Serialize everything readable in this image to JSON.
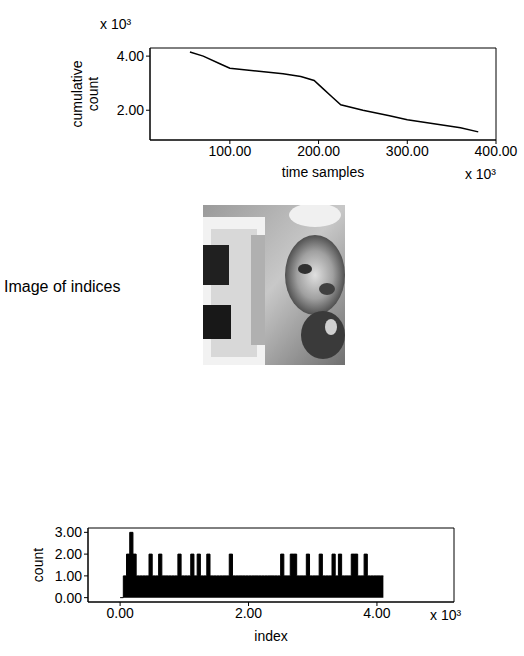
{
  "chart_data": [
    {
      "type": "line",
      "x_label": "time samples",
      "y_label": "cumulative count",
      "x": [
        55000,
        70000,
        90000,
        100000,
        130000,
        160000,
        180000,
        195000,
        205000,
        215000,
        225000,
        250000,
        280000,
        300000,
        330000,
        360000,
        380000
      ],
      "values": [
        4150,
        4000,
        3700,
        3550,
        3450,
        3350,
        3250,
        3100,
        2800,
        2500,
        2200,
        2000,
        1800,
        1650,
        1500,
        1350,
        1200
      ],
      "color": "#000000",
      "xlim": [
        10000,
        400000
      ],
      "xticks": [
        {
          "value": 100000,
          "label": "100.00"
        },
        {
          "value": 200000,
          "label": "200.00"
        },
        {
          "value": 300000,
          "label": "300.00"
        },
        {
          "value": 400000,
          "label": "400.00"
        }
      ],
      "ylim": [
        900,
        4300
      ],
      "yticks": [
        {
          "value": 2000,
          "label": "2.00"
        },
        {
          "value": 4000,
          "label": "4.00"
        }
      ],
      "annotations": [
        {
          "text": "x 10³",
          "axis": "y"
        },
        {
          "text": "x 10³",
          "axis": "x"
        }
      ]
    },
    {
      "type": "image",
      "title": "Image of indices"
    },
    {
      "type": "histogram",
      "x_label": "index",
      "y_label": "count",
      "bins": [
        0,
        50,
        100,
        150,
        200,
        250,
        300,
        350,
        400,
        450,
        500,
        550,
        600,
        650,
        700,
        750,
        800,
        850,
        900,
        950,
        1000,
        1050,
        1100,
        1150,
        1200,
        1250,
        1300,
        1350,
        1400,
        1450,
        1500,
        1550,
        1600,
        1650,
        1700,
        1750,
        1800,
        1850,
        1900,
        1950,
        2000,
        2050,
        2100,
        2150,
        2200,
        2250,
        2300,
        2350,
        2400,
        2450,
        2500,
        2550,
        2600,
        2650,
        2700,
        2750,
        2800,
        2850,
        2900,
        2950,
        3000,
        3050,
        3100,
        3150,
        3200,
        3250,
        3300,
        3350,
        3400,
        3450,
        3500,
        3550,
        3600,
        3650,
        3700,
        3750,
        3800,
        3850,
        3900,
        3950,
        4000,
        4050,
        4100
      ],
      "values": [
        0,
        1,
        2,
        3,
        2,
        1,
        1,
        1,
        1,
        2,
        1,
        1,
        2,
        1,
        1,
        1,
        1,
        1,
        2,
        1,
        1,
        1,
        2,
        1,
        2,
        1,
        1,
        2,
        1,
        1,
        1,
        1,
        1,
        1,
        2,
        1,
        1,
        1,
        1,
        1,
        1,
        1,
        1,
        1,
        1,
        1,
        1,
        1,
        1,
        1,
        2,
        1,
        1,
        2,
        2,
        1,
        1,
        1,
        2,
        1,
        1,
        1,
        2,
        1,
        1,
        1,
        2,
        1,
        2,
        1,
        1,
        1,
        2,
        2,
        1,
        1,
        2,
        1,
        1,
        1,
        1,
        1
      ],
      "color": "#000000",
      "xlim": [
        -500,
        5200
      ],
      "xticks": [
        {
          "value": 0,
          "label": "0.00"
        },
        {
          "value": 2000,
          "label": "2.00"
        },
        {
          "value": 4000,
          "label": "4.00"
        }
      ],
      "ylim": [
        -0.2,
        3.2
      ],
      "yticks": [
        {
          "value": 0,
          "label": "0.00"
        },
        {
          "value": 1,
          "label": "1.00"
        },
        {
          "value": 2,
          "label": "2.00"
        },
        {
          "value": 3,
          "label": "3.00"
        }
      ],
      "annotations": [
        {
          "text": "x 10³",
          "axis": "x"
        }
      ]
    }
  ]
}
